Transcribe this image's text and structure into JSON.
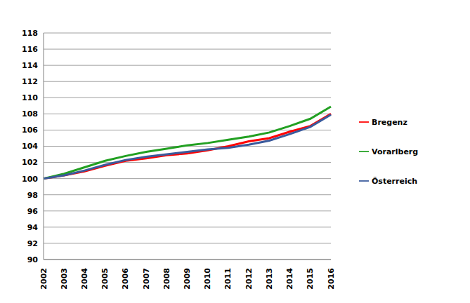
{
  "chart_data": {
    "type": "line",
    "categories": [
      "2002",
      "2003",
      "2004",
      "2005",
      "2006",
      "2007",
      "2008",
      "2009",
      "2010",
      "2011",
      "2012",
      "2013",
      "2014",
      "2015",
      "2016"
    ],
    "series": [
      {
        "name": "Bregenz",
        "color": "#ff0000",
        "values": [
          100,
          100.4,
          100.9,
          101.6,
          102.2,
          102.5,
          102.9,
          103.1,
          103.5,
          104.0,
          104.6,
          105.0,
          105.8,
          106.5,
          108.0
        ]
      },
      {
        "name": "Vorarlberg",
        "color": "#22a022",
        "values": [
          100,
          100.6,
          101.4,
          102.2,
          102.8,
          103.3,
          103.7,
          104.1,
          104.4,
          104.8,
          105.2,
          105.7,
          106.5,
          107.4,
          108.9
        ]
      },
      {
        "name": "Österreich",
        "color": "#3a5a9c",
        "values": [
          100,
          100.4,
          101.0,
          101.7,
          102.3,
          102.7,
          103.0,
          103.3,
          103.6,
          103.8,
          104.2,
          104.7,
          105.5,
          106.4,
          107.9
        ]
      }
    ],
    "ylim": [
      90,
      118
    ],
    "yticks": [
      90,
      92,
      94,
      96,
      98,
      100,
      102,
      104,
      106,
      108,
      110,
      112,
      114,
      116,
      118
    ],
    "grid": true,
    "legend": "right"
  }
}
